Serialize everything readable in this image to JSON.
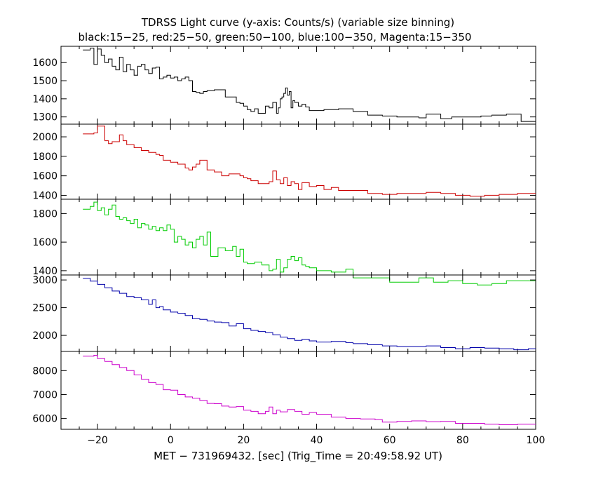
{
  "title": "TDRSS Light curve (y-axis: Counts/s) (variable size binning)",
  "subtitle": "black:15−25, red:25−50, green:50−100, blue:100−350, Magenta:15−350",
  "xlabel": "MET − 731969432. [sec] (Trig_Time = 20:49:58.92 UT)",
  "chart_data": {
    "type": "line",
    "step": true,
    "shared_x_axis": {
      "xlim": [
        -30,
        100
      ],
      "ticks": [
        -20,
        0,
        20,
        40,
        60,
        80,
        100
      ],
      "tick_labels": [
        "−20",
        "0",
        "20",
        "40",
        "60",
        "80",
        "100"
      ]
    },
    "panels": [
      {
        "name": "black",
        "band": "15−25",
        "color": "#000000",
        "ylim": [
          1260,
          1690
        ],
        "yticks": [
          1300,
          1400,
          1500,
          1600
        ],
        "ytick_labels": [
          "1300",
          "1400",
          "1500",
          "1600"
        ],
        "x": [
          -24,
          -22,
          -21,
          -20,
          -19,
          -18,
          -17,
          -16,
          -15,
          -14,
          -13,
          -12,
          -11,
          -10,
          -9,
          -8,
          -7,
          -6,
          -5,
          -4,
          -3,
          -2,
          -1,
          0,
          1,
          2,
          3,
          4,
          5,
          6,
          7,
          8,
          9,
          10,
          12,
          15,
          18,
          19,
          20,
          21,
          22,
          23,
          24,
          25,
          26,
          27,
          28,
          29,
          29.5,
          30,
          30.5,
          31,
          31.5,
          32,
          32.5,
          33,
          33.5,
          34,
          35,
          36,
          37,
          38,
          42,
          46,
          50,
          54,
          58,
          62,
          65,
          68,
          70,
          74,
          77,
          80,
          85,
          88,
          92,
          96
        ],
        "values": [
          1670,
          1680,
          1590,
          1675,
          1640,
          1600,
          1620,
          1580,
          1560,
          1630,
          1550,
          1590,
          1560,
          1530,
          1580,
          1590,
          1560,
          1540,
          1570,
          1575,
          1510,
          1520,
          1530,
          1515,
          1520,
          1500,
          1510,
          1520,
          1500,
          1440,
          1435,
          1430,
          1440,
          1445,
          1450,
          1410,
          1380,
          1375,
          1360,
          1340,
          1330,
          1345,
          1320,
          1320,
          1360,
          1350,
          1380,
          1320,
          1350,
          1400,
          1410,
          1430,
          1460,
          1420,
          1440,
          1350,
          1390,
          1380,
          1360,
          1370,
          1355,
          1335,
          1340,
          1345,
          1330,
          1310,
          1305,
          1300,
          1300,
          1295,
          1315,
          1290,
          1300,
          1300,
          1305,
          1310,
          1315,
          1275
        ]
      },
      {
        "name": "red",
        "band": "25−50",
        "color": "#cc0000",
        "ylim": [
          1360,
          2130
        ],
        "yticks": [
          1400,
          1600,
          1800,
          2000
        ],
        "ytick_labels": [
          "1400",
          "1600",
          "1800",
          "2000"
        ],
        "x": [
          -24,
          -21,
          -20,
          -18,
          -17,
          -16,
          -14,
          -13,
          -12,
          -10,
          -8,
          -6,
          -4,
          -3,
          -2,
          0,
          2,
          4,
          5,
          6,
          7,
          8,
          10,
          12,
          14,
          16,
          19,
          20,
          21,
          22,
          24,
          27,
          28,
          29,
          30,
          31,
          32,
          33,
          34,
          35,
          36,
          38,
          40,
          42,
          44,
          46,
          50,
          54,
          58,
          62,
          66,
          70,
          74,
          78,
          82,
          86,
          90,
          95
        ],
        "values": [
          2030,
          2040,
          2110,
          1960,
          1930,
          1950,
          2020,
          1960,
          1920,
          1890,
          1860,
          1840,
          1820,
          1810,
          1760,
          1740,
          1720,
          1680,
          1660,
          1690,
          1720,
          1760,
          1660,
          1640,
          1600,
          1620,
          1600,
          1580,
          1570,
          1550,
          1520,
          1540,
          1650,
          1560,
          1520,
          1580,
          1500,
          1540,
          1520,
          1460,
          1530,
          1490,
          1500,
          1460,
          1480,
          1450,
          1450,
          1420,
          1410,
          1420,
          1420,
          1430,
          1420,
          1400,
          1390,
          1400,
          1410,
          1420
        ]
      },
      {
        "name": "green",
        "band": "50−100",
        "color": "#00cc00",
        "ylim": [
          1370,
          1900
        ],
        "yticks": [
          1400,
          1600,
          1800
        ],
        "ytick_labels": [
          "1400",
          "1600",
          "1800"
        ],
        "x": [
          -24,
          -22,
          -21,
          -20,
          -19,
          -18,
          -17,
          -16,
          -15,
          -14,
          -13,
          -12,
          -11,
          -10,
          -9,
          -8,
          -7,
          -6,
          -5,
          -4,
          -3,
          -2,
          -1,
          0,
          1,
          2,
          3,
          4,
          5,
          6,
          7,
          8,
          9,
          10,
          11,
          13,
          15,
          17,
          18,
          19,
          20,
          21,
          23,
          25,
          27,
          28,
          29,
          30,
          31,
          32,
          33,
          34,
          35,
          36,
          37,
          38,
          40,
          44,
          48,
          50,
          56,
          60,
          64,
          68,
          72,
          76,
          80,
          84,
          88,
          92,
          96
        ],
        "values": [
          1830,
          1850,
          1880,
          1820,
          1840,
          1790,
          1830,
          1860,
          1780,
          1760,
          1770,
          1750,
          1730,
          1760,
          1700,
          1730,
          1720,
          1690,
          1710,
          1680,
          1700,
          1680,
          1720,
          1690,
          1600,
          1640,
          1620,
          1580,
          1600,
          1560,
          1620,
          1640,
          1580,
          1670,
          1500,
          1560,
          1540,
          1570,
          1500,
          1550,
          1460,
          1450,
          1460,
          1440,
          1400,
          1410,
          1480,
          1390,
          1420,
          1480,
          1500,
          1470,
          1490,
          1440,
          1430,
          1420,
          1400,
          1390,
          1410,
          1350,
          1350,
          1320,
          1320,
          1350,
          1320,
          1330,
          1310,
          1300,
          1310,
          1330,
          1330
        ]
      },
      {
        "name": "blue",
        "band": "100−350",
        "color": "#0000aa",
        "ylim": [
          1710,
          3090
        ],
        "yticks": [
          2000,
          2500,
          3000
        ],
        "ytick_labels": [
          "2000",
          "2500",
          "3000"
        ],
        "x": [
          -24,
          -22,
          -20,
          -18,
          -16,
          -14,
          -12,
          -10,
          -8,
          -6,
          -5,
          -4,
          -3,
          -2,
          0,
          2,
          4,
          6,
          8,
          10,
          12,
          14,
          16,
          18,
          20,
          22,
          24,
          26,
          28,
          30,
          32,
          34,
          36,
          38,
          40,
          44,
          48,
          50,
          54,
          58,
          62,
          66,
          70,
          74,
          78,
          82,
          86,
          90,
          94,
          98
        ],
        "values": [
          3030,
          2980,
          2920,
          2860,
          2800,
          2760,
          2700,
          2680,
          2640,
          2560,
          2640,
          2500,
          2520,
          2460,
          2420,
          2400,
          2360,
          2300,
          2290,
          2260,
          2240,
          2230,
          2170,
          2210,
          2120,
          2090,
          2070,
          2050,
          2010,
          1970,
          1940,
          1910,
          1930,
          1900,
          1880,
          1890,
          1870,
          1850,
          1830,
          1810,
          1800,
          1800,
          1810,
          1780,
          1760,
          1780,
          1770,
          1760,
          1740,
          1760
        ]
      },
      {
        "name": "magenta",
        "band": "15−350",
        "color": "#cc00cc",
        "ylim": [
          5550,
          8800
        ],
        "yticks": [
          6000,
          7000,
          8000
        ],
        "ytick_labels": [
          "6000",
          "7000",
          "8000"
        ],
        "x": [
          -24,
          -21,
          -20,
          -18,
          -16,
          -14,
          -12,
          -10,
          -8,
          -6,
          -4,
          -2,
          0,
          2,
          4,
          6,
          8,
          10,
          12,
          14,
          16,
          18,
          20,
          22,
          24,
          26,
          27,
          28,
          29,
          30,
          32,
          34,
          36,
          38,
          40,
          44,
          48,
          52,
          56,
          58,
          62,
          66,
          70,
          74,
          78,
          82,
          86,
          90,
          95
        ],
        "values": [
          8600,
          8640,
          8500,
          8380,
          8250,
          8130,
          8000,
          7820,
          7640,
          7500,
          7420,
          7200,
          7180,
          7000,
          6900,
          6850,
          6760,
          6630,
          6620,
          6520,
          6480,
          6500,
          6350,
          6300,
          6200,
          6300,
          6480,
          6200,
          6350,
          6280,
          6380,
          6300,
          6180,
          6250,
          6180,
          6060,
          6000,
          5980,
          5950,
          5850,
          5880,
          5900,
          5870,
          5880,
          5800,
          5800,
          5760,
          5740,
          5760
        ]
      }
    ]
  }
}
